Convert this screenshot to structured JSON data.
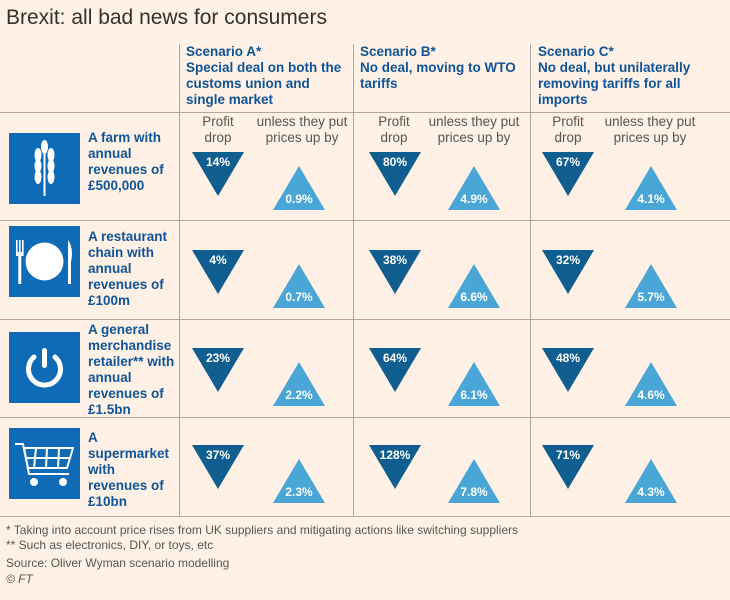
{
  "title": "Brexit: all bad news for consumers",
  "colors": {
    "background": "#fff1e5",
    "profit_drop": "#0f5e8f",
    "price_rise": "#4aa6d6",
    "heading": "#0f5499",
    "icon_bg": "#0f6bb5"
  },
  "sublabels": {
    "profit": "Profit drop",
    "price": "unless they put prices up by"
  },
  "chart_data": {
    "type": "table",
    "title": "Brexit: all bad news for consumers",
    "scenarios": [
      {
        "name": "Scenario A*",
        "description": "Special deal on both the customs union and single market"
      },
      {
        "name": "Scenario B*",
        "description": "No deal, moving to WTO tariffs"
      },
      {
        "name": "Scenario C*",
        "description": "No deal, but unilaterally removing tariffs for all imports"
      }
    ],
    "rows": [
      {
        "label": "A farm with annual revenues of £500,000",
        "icon": "wheat-icon",
        "profit_drop": [
          "14%",
          "80%",
          "67%"
        ],
        "price_rise": [
          "0.9%",
          "4.9%",
          "4.1%"
        ]
      },
      {
        "label": "A restaurant chain with annual revenues of £100m",
        "icon": "plate-cutlery-icon",
        "profit_drop": [
          "4%",
          "38%",
          "32%"
        ],
        "price_rise": [
          "0.7%",
          "6.6%",
          "5.7%"
        ]
      },
      {
        "label": "A general merchandise retailer** with annual revenues of £1.5bn",
        "icon": "power-icon",
        "profit_drop": [
          "23%",
          "64%",
          "48%"
        ],
        "price_rise": [
          "2.2%",
          "6.1%",
          "4.6%"
        ]
      },
      {
        "label": "A supermarket with revenues of £10bn",
        "icon": "shopping-trolley-icon",
        "profit_drop": [
          "37%",
          "128%",
          "71%"
        ],
        "price_rise": [
          "2.3%",
          "7.8%",
          "4.3%"
        ]
      }
    ]
  },
  "footnotes": [
    "* Taking into account price rises from UK suppliers and mitigating actions like switching suppliers",
    "** Such as electronics, DIY, or toys, etc",
    "Source: Oliver Wyman scenario modelling"
  ],
  "copyright": "© FT"
}
